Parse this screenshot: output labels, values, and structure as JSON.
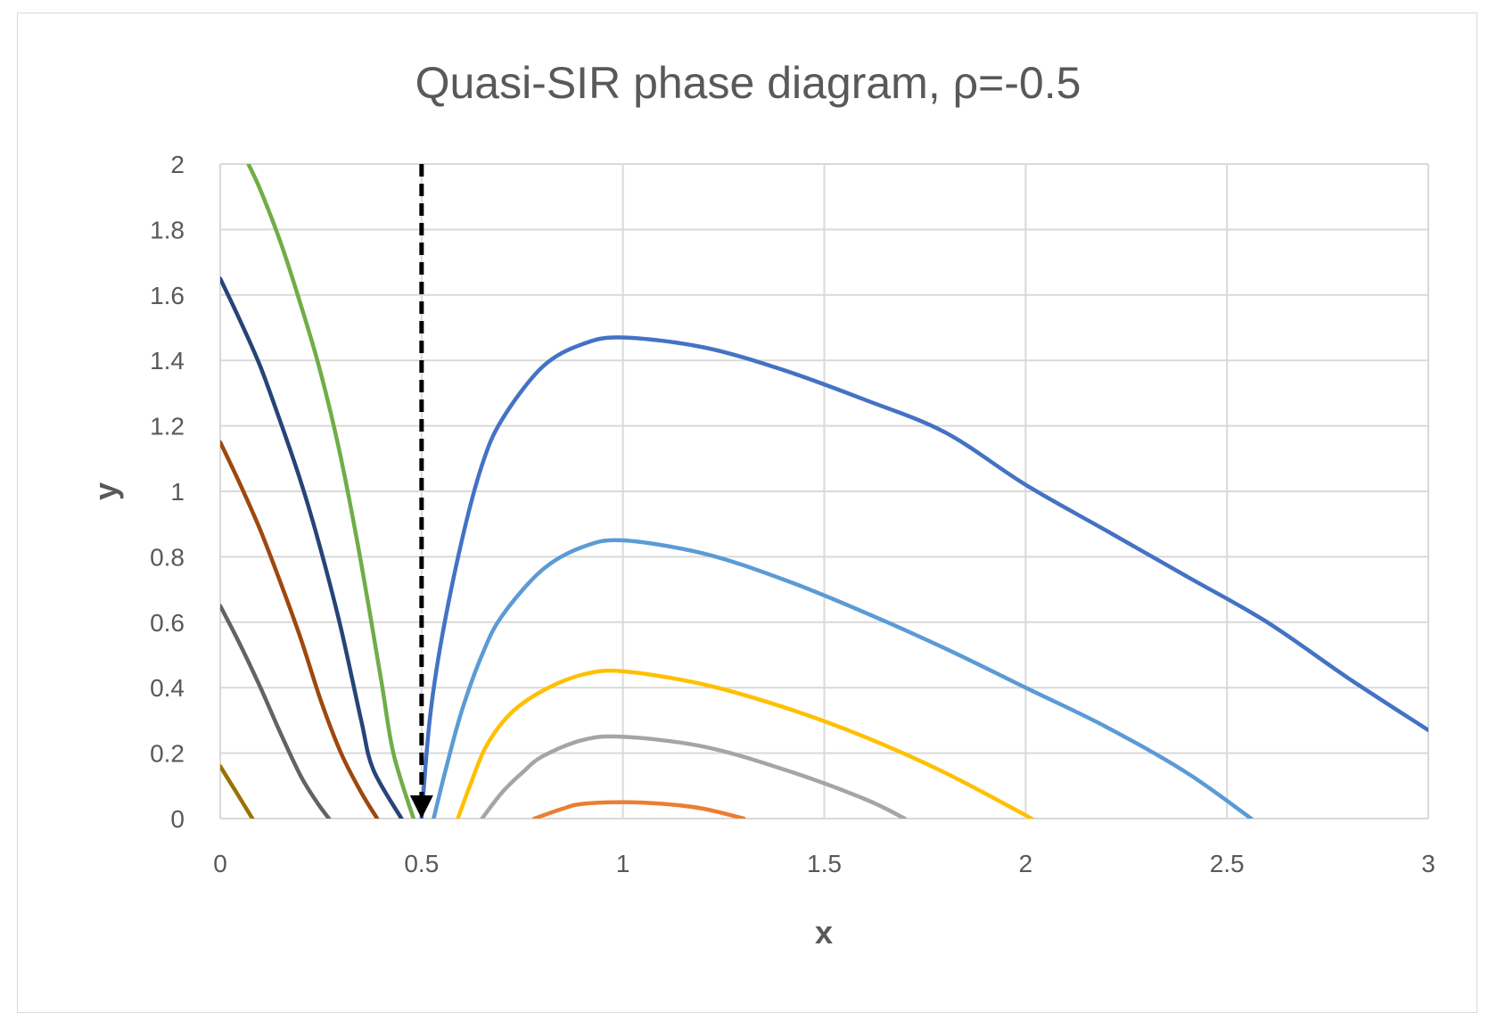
{
  "chart_data": {
    "type": "line",
    "title": "Quasi-SIR phase diagram, ρ=-0.5",
    "xlabel": "x",
    "ylabel": "y",
    "xlim": [
      0,
      3
    ],
    "ylim": [
      0,
      2
    ],
    "x_ticks": [
      "0",
      "0.5",
      "1",
      "1.5",
      "2",
      "2.5",
      "3"
    ],
    "y_ticks": [
      "0",
      "0.2",
      "0.4",
      "0.6",
      "0.8",
      "1",
      "1.2",
      "1.4",
      "1.6",
      "1.8",
      "2"
    ],
    "grid": true,
    "legend": "none",
    "series": [
      {
        "color": "#70ad47",
        "points": [
          [
            0.07,
            2.0
          ],
          [
            0.1,
            1.92
          ],
          [
            0.15,
            1.76
          ],
          [
            0.2,
            1.57
          ],
          [
            0.25,
            1.36
          ],
          [
            0.3,
            1.1
          ],
          [
            0.35,
            0.78
          ],
          [
            0.4,
            0.42
          ],
          [
            0.43,
            0.2
          ],
          [
            0.48,
            0.0
          ]
        ]
      },
      {
        "color": "#264478",
        "points": [
          [
            0.0,
            1.65
          ],
          [
            0.05,
            1.52
          ],
          [
            0.1,
            1.38
          ],
          [
            0.15,
            1.21
          ],
          [
            0.2,
            1.03
          ],
          [
            0.25,
            0.82
          ],
          [
            0.3,
            0.58
          ],
          [
            0.35,
            0.3
          ],
          [
            0.38,
            0.15
          ],
          [
            0.45,
            0.0
          ]
        ]
      },
      {
        "color": "#9e480e",
        "points": [
          [
            0.0,
            1.15
          ],
          [
            0.05,
            1.02
          ],
          [
            0.1,
            0.88
          ],
          [
            0.15,
            0.72
          ],
          [
            0.2,
            0.55
          ],
          [
            0.25,
            0.36
          ],
          [
            0.3,
            0.2
          ],
          [
            0.35,
            0.08
          ],
          [
            0.39,
            0.0
          ]
        ]
      },
      {
        "color": "#636363",
        "points": [
          [
            0.0,
            0.65
          ],
          [
            0.05,
            0.53
          ],
          [
            0.1,
            0.4
          ],
          [
            0.15,
            0.26
          ],
          [
            0.2,
            0.13
          ],
          [
            0.24,
            0.05
          ],
          [
            0.27,
            0.0
          ]
        ]
      },
      {
        "color": "#997300",
        "points": [
          [
            0.0,
            0.16
          ],
          [
            0.04,
            0.08
          ],
          [
            0.08,
            0.0
          ]
        ]
      },
      {
        "color": "#4472c4",
        "points": [
          [
            0.5,
            0.0
          ],
          [
            0.52,
            0.3
          ],
          [
            0.55,
            0.55
          ],
          [
            0.6,
            0.85
          ],
          [
            0.65,
            1.08
          ],
          [
            0.7,
            1.22
          ],
          [
            0.8,
            1.38
          ],
          [
            0.9,
            1.45
          ],
          [
            1.0,
            1.47
          ],
          [
            1.2,
            1.44
          ],
          [
            1.4,
            1.37
          ],
          [
            1.6,
            1.28
          ],
          [
            1.8,
            1.18
          ],
          [
            2.0,
            1.02
          ],
          [
            2.2,
            0.88
          ],
          [
            2.4,
            0.74
          ],
          [
            2.6,
            0.6
          ],
          [
            2.8,
            0.43
          ],
          [
            3.0,
            0.27
          ]
        ]
      },
      {
        "color": "#5b9bd5",
        "points": [
          [
            0.53,
            0.0
          ],
          [
            0.56,
            0.15
          ],
          [
            0.6,
            0.33
          ],
          [
            0.65,
            0.5
          ],
          [
            0.7,
            0.62
          ],
          [
            0.8,
            0.76
          ],
          [
            0.9,
            0.83
          ],
          [
            1.0,
            0.85
          ],
          [
            1.2,
            0.81
          ],
          [
            1.4,
            0.73
          ],
          [
            1.6,
            0.63
          ],
          [
            1.8,
            0.52
          ],
          [
            2.0,
            0.4
          ],
          [
            2.2,
            0.28
          ],
          [
            2.4,
            0.14
          ],
          [
            2.56,
            0.0
          ]
        ]
      },
      {
        "color": "#ffc000",
        "points": [
          [
            0.59,
            0.0
          ],
          [
            0.62,
            0.1
          ],
          [
            0.66,
            0.22
          ],
          [
            0.72,
            0.32
          ],
          [
            0.8,
            0.39
          ],
          [
            0.9,
            0.44
          ],
          [
            1.0,
            0.45
          ],
          [
            1.2,
            0.41
          ],
          [
            1.4,
            0.34
          ],
          [
            1.6,
            0.25
          ],
          [
            1.8,
            0.14
          ],
          [
            2.0,
            0.01
          ],
          [
            2.01,
            0.0
          ]
        ]
      },
      {
        "color": "#a5a5a5",
        "points": [
          [
            0.65,
            0.0
          ],
          [
            0.7,
            0.08
          ],
          [
            0.75,
            0.14
          ],
          [
            0.8,
            0.19
          ],
          [
            0.9,
            0.24
          ],
          [
            1.0,
            0.25
          ],
          [
            1.2,
            0.22
          ],
          [
            1.4,
            0.15
          ],
          [
            1.6,
            0.06
          ],
          [
            1.7,
            0.0
          ]
        ]
      },
      {
        "color": "#ed7d31",
        "points": [
          [
            0.78,
            0.0
          ],
          [
            0.85,
            0.03
          ],
          [
            0.9,
            0.045
          ],
          [
            1.0,
            0.05
          ],
          [
            1.1,
            0.045
          ],
          [
            1.2,
            0.03
          ],
          [
            1.3,
            0.0
          ]
        ]
      }
    ],
    "annotation": {
      "type": "dashed-arrow",
      "color": "#000000",
      "x": 0.5,
      "from_y": 2.0,
      "to_y": 0.0
    }
  }
}
